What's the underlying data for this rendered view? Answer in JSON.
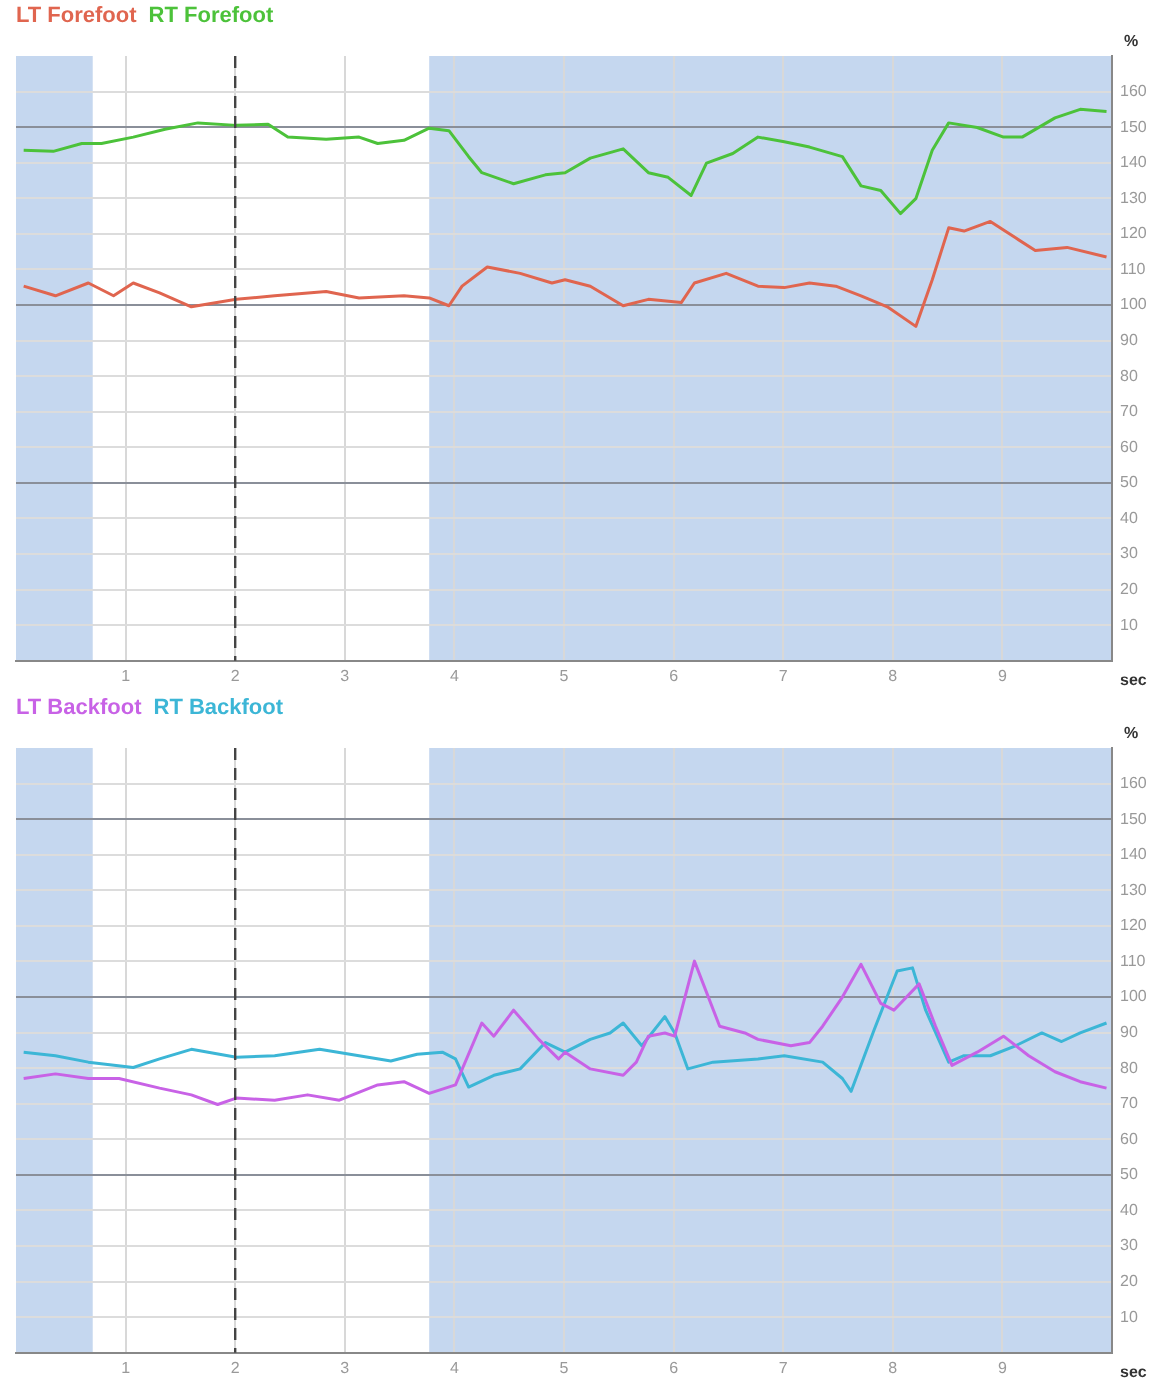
{
  "chart_data": [
    {
      "type": "line",
      "xlabel": "sec",
      "ylabel": "%",
      "xlim": [
        0,
        10
      ],
      "ylim": [
        0,
        170
      ],
      "xticks": [
        1,
        2,
        3,
        4,
        5,
        6,
        7,
        8,
        9
      ],
      "yticks": [
        10,
        20,
        30,
        40,
        50,
        60,
        70,
        80,
        90,
        100,
        110,
        120,
        130,
        140,
        150,
        160
      ],
      "grid": true,
      "legend": "top left",
      "bands": [
        {
          "axis": "x",
          "from": 0,
          "to": 0.7,
          "color": "#c5d7ef"
        },
        {
          "axis": "x",
          "from": 3.77,
          "to": 10,
          "color": "#c5d7ef"
        }
      ],
      "ref_lines": [
        {
          "axis": "x",
          "value": 2,
          "line_style": "dashed",
          "color": "#444444"
        }
      ],
      "series": [
        {
          "name": "LT Forefoot",
          "color": "#e0654f",
          "x": [
            0.07,
            0.36,
            0.66,
            0.89,
            1.07,
            1.31,
            1.6,
            2.01,
            2.36,
            2.83,
            3.13,
            3.54,
            3.77,
            3.95,
            4.07,
            4.3,
            4.6,
            4.89,
            5.01,
            5.24,
            5.54,
            5.77,
            6.07,
            6.19,
            6.48,
            6.77,
            7.01,
            7.24,
            7.48,
            7.71,
            7.95,
            8.21,
            8.36,
            8.51,
            8.65,
            8.89,
            9.12,
            9.3,
            9.59,
            9.95
          ],
          "values": [
            105.3,
            102.6,
            106.2,
            102.6,
            106.2,
            103.4,
            99.5,
            101.6,
            102.6,
            103.8,
            102,
            102.6,
            102,
            99.8,
            105.3,
            110.7,
            108.9,
            106.2,
            107.1,
            105.3,
            99.8,
            101.6,
            100.7,
            106.2,
            108.9,
            105.3,
            104.9,
            106.2,
            105.3,
            102.6,
            99.5,
            94,
            107.1,
            121.7,
            120.8,
            123.5,
            118.9,
            115.3,
            116.2,
            113.5
          ]
        },
        {
          "name": "RT Forefoot",
          "color": "#4cc23a",
          "x": [
            0.07,
            0.34,
            0.6,
            0.78,
            1.07,
            1.36,
            1.66,
            2.01,
            2.3,
            2.48,
            2.83,
            3.13,
            3.3,
            3.54,
            3.77,
            3.95,
            4.13,
            4.25,
            4.54,
            4.83,
            5.01,
            5.24,
            5.54,
            5.77,
            5.95,
            6.16,
            6.3,
            6.54,
            6.77,
            7.01,
            7.24,
            7.54,
            7.71,
            7.89,
            8.07,
            8.21,
            8.36,
            8.51,
            8.77,
            9.01,
            9.18,
            9.48,
            9.71,
            9.95
          ],
          "values": [
            143.5,
            143.2,
            145.4,
            145.4,
            147.2,
            149.4,
            151.2,
            150.5,
            150.8,
            147.2,
            146.6,
            147.2,
            145.4,
            146.3,
            149.7,
            149,
            141.7,
            137.2,
            134.1,
            136.6,
            137.2,
            141.3,
            143.9,
            137.2,
            135.9,
            130.8,
            139.9,
            142.6,
            147.2,
            145.9,
            144.4,
            141.7,
            133.5,
            132.2,
            125.7,
            129.9,
            143.5,
            151.2,
            149.9,
            147.2,
            147.2,
            152.6,
            155,
            154.4
          ]
        }
      ]
    },
    {
      "type": "line",
      "xlabel": "sec",
      "ylabel": "%",
      "xlim": [
        0,
        10
      ],
      "ylim": [
        0,
        170
      ],
      "xticks": [
        1,
        2,
        3,
        4,
        5,
        6,
        7,
        8,
        9
      ],
      "yticks": [
        10,
        20,
        30,
        40,
        50,
        60,
        70,
        80,
        90,
        100,
        110,
        120,
        130,
        140,
        150,
        160
      ],
      "grid": true,
      "legend": "top left",
      "bands": [
        {
          "axis": "x",
          "from": 0,
          "to": 0.7,
          "color": "#c5d7ef"
        },
        {
          "axis": "x",
          "from": 3.77,
          "to": 10,
          "color": "#c5d7ef"
        }
      ],
      "ref_lines": [
        {
          "axis": "x",
          "value": 2,
          "line_style": "dashed",
          "color": "#444444"
        }
      ],
      "series": [
        {
          "name": "LT Backfoot",
          "color": "#c862e6",
          "x": [
            0.07,
            0.36,
            0.66,
            0.94,
            1.31,
            1.6,
            1.84,
            2.01,
            2.36,
            2.66,
            2.95,
            3.3,
            3.54,
            3.77,
            4.01,
            4.25,
            4.36,
            4.54,
            4.77,
            4.95,
            5.01,
            5.24,
            5.54,
            5.66,
            5.77,
            5.92,
            6.01,
            6.19,
            6.42,
            6.65,
            6.77,
            7.07,
            7.24,
            7.36,
            7.54,
            7.71,
            7.89,
            8.01,
            8.24,
            8.39,
            8.54,
            8.77,
            9.01,
            9.24,
            9.48,
            9.71,
            9.95
          ],
          "values": [
            77.1,
            78.4,
            77.1,
            77.1,
            74.4,
            72.5,
            69.8,
            71.6,
            71,
            72.5,
            71,
            75.3,
            76.2,
            72.9,
            75.3,
            92.7,
            89,
            96.3,
            88.1,
            82.6,
            84.5,
            79.8,
            78,
            81.7,
            89,
            89.9,
            89,
            110.1,
            91.8,
            89.9,
            88.1,
            86.3,
            87.2,
            91.8,
            100,
            109.2,
            98.2,
            96.3,
            103.7,
            91.8,
            80.8,
            84.5,
            89,
            83.5,
            79,
            76.2,
            74.4
          ]
        },
        {
          "name": "RT Backfoot",
          "color": "#3cb6d6",
          "x": [
            0.07,
            0.36,
            0.66,
            1.07,
            1.31,
            1.6,
            2.01,
            2.36,
            2.77,
            3.13,
            3.42,
            3.66,
            3.89,
            4.01,
            4.13,
            4.36,
            4.6,
            4.83,
            5.01,
            5.24,
            5.42,
            5.54,
            5.71,
            5.92,
            6.01,
            6.13,
            6.36,
            6.77,
            7.01,
            7.36,
            7.54,
            7.62,
            7.83,
            8.04,
            8.18,
            8.3,
            8.51,
            8.65,
            8.89,
            9.12,
            9.36,
            9.54,
            9.71,
            9.95
          ],
          "values": [
            84.5,
            83.5,
            81.7,
            80.2,
            82.6,
            85.3,
            83.1,
            83.5,
            85.3,
            83.5,
            82,
            83.9,
            84.5,
            82.6,
            74.7,
            78,
            79.8,
            87.2,
            84.5,
            88.1,
            89.9,
            92.7,
            86.3,
            94.5,
            89.9,
            79.8,
            81.7,
            82.6,
            83.5,
            81.7,
            77.1,
            73.5,
            90.8,
            107.3,
            108.2,
            96.3,
            81.7,
            83.5,
            83.5,
            86.3,
            89.9,
            87.5,
            89.9,
            92.7
          ]
        }
      ]
    }
  ]
}
